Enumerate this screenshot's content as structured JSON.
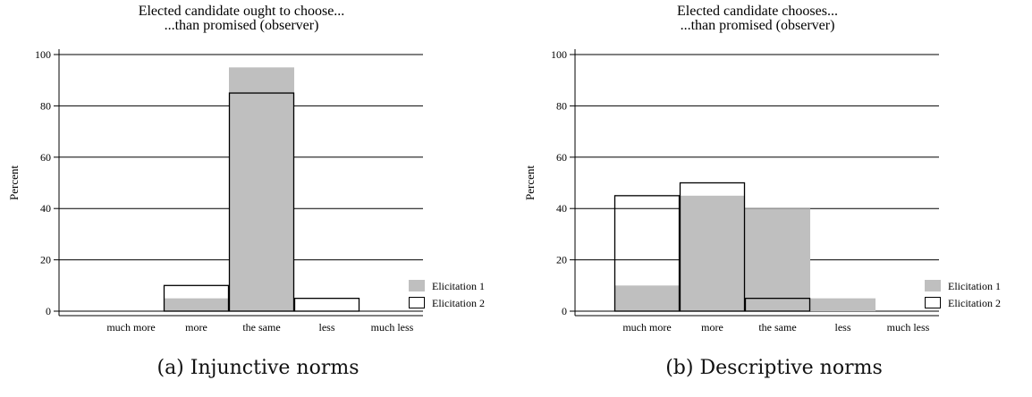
{
  "chart_data": [
    {
      "type": "bar",
      "title": [
        "Elected candidate ought to choose...",
        "...than promised (observer)"
      ],
      "ylabel": "Percent",
      "xlabel": "",
      "categories": [
        "much more",
        "more",
        "the same",
        "less",
        "much less"
      ],
      "yticks": [
        0,
        20,
        40,
        60,
        80,
        100
      ],
      "ylim": [
        0,
        100
      ],
      "grid": true,
      "legend_position": "right",
      "series": [
        {
          "name": "Elicitation 1",
          "values": [
            0,
            5,
            95,
            0,
            0
          ],
          "style": "filled",
          "color": "#bfbfbf"
        },
        {
          "name": "Elicitation 2",
          "values": [
            0,
            10,
            85,
            5,
            0
          ],
          "style": "outline",
          "color": "#000000"
        }
      ],
      "caption": "(a) Injunctive norms"
    },
    {
      "type": "bar",
      "title": [
        "Elected candidate chooses...",
        "...than promised (observer)"
      ],
      "ylabel": "Percent",
      "xlabel": "",
      "categories": [
        "much more",
        "more",
        "the same",
        "less",
        "much less"
      ],
      "yticks": [
        0,
        20,
        40,
        60,
        80,
        100
      ],
      "ylim": [
        0,
        100
      ],
      "grid": true,
      "legend_position": "right",
      "series": [
        {
          "name": "Elicitation 1",
          "values": [
            10,
            45,
            40,
            5,
            0
          ],
          "style": "filled",
          "color": "#bfbfbf"
        },
        {
          "name": "Elicitation 2",
          "values": [
            45,
            50,
            5,
            0,
            0
          ],
          "style": "outline",
          "color": "#000000"
        }
      ],
      "caption": "(b) Descriptive norms"
    }
  ]
}
